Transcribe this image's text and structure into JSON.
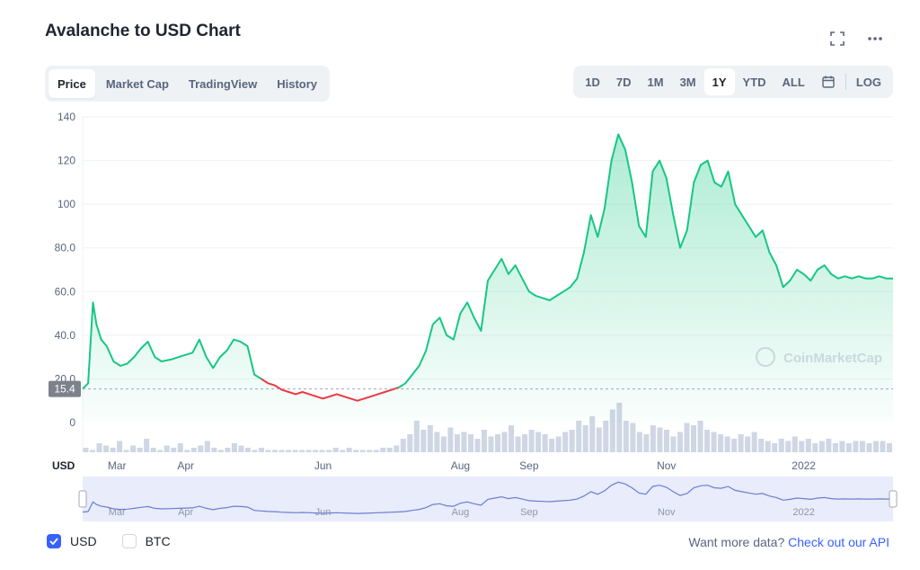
{
  "title": "Avalanche to USD Chart",
  "tabs": [
    {
      "label": "Price",
      "active": true
    },
    {
      "label": "Market Cap",
      "active": false
    },
    {
      "label": "TradingView",
      "active": false
    },
    {
      "label": "History",
      "active": false
    }
  ],
  "ranges": [
    {
      "label": "1D",
      "active": false
    },
    {
      "label": "7D",
      "active": false
    },
    {
      "label": "1M",
      "active": false
    },
    {
      "label": "3M",
      "active": false
    },
    {
      "label": "1Y",
      "active": true
    },
    {
      "label": "YTD",
      "active": false
    },
    {
      "label": "ALL",
      "active": false
    }
  ],
  "log_label": "LOG",
  "watermark": "CoinMarketCap",
  "footer": {
    "usd_label": "USD",
    "btc_label": "BTC",
    "api_text": "Want more data?",
    "api_link": "Check out our API"
  },
  "colors": {
    "up": "#16c784",
    "down": "#ea3943",
    "accent": "#3861fb",
    "navigator_fill": "#e8ecfb",
    "navigator_line": "#6a7fd0",
    "volume": "#cfd6e4"
  },
  "icons": [
    "fullscreen-icon",
    "more-icon",
    "calendar-icon",
    "check-icon"
  ],
  "chart_data": {
    "type": "area",
    "y_unit_label": "USD",
    "ylim": [
      0,
      140
    ],
    "y_ticks": [
      {
        "value": 140,
        "label": "140"
      },
      {
        "value": 120,
        "label": "120"
      },
      {
        "value": 100,
        "label": "100"
      },
      {
        "value": 80,
        "label": "80.0"
      },
      {
        "value": 60,
        "label": "60.0"
      },
      {
        "value": 40,
        "label": "40.0"
      },
      {
        "value": 20,
        "label": "20.0"
      },
      {
        "value": 0,
        "label": "0"
      }
    ],
    "reference_line": {
      "value": 15.4,
      "label": "15.4"
    },
    "x_ticks": [
      {
        "x": 0.5,
        "label": "Mar"
      },
      {
        "x": 1.5,
        "label": "Apr"
      },
      {
        "x": 3.5,
        "label": "Jun"
      },
      {
        "x": 5.5,
        "label": "Aug"
      },
      {
        "x": 6.5,
        "label": "Sep"
      },
      {
        "x": 8.5,
        "label": "Nov"
      },
      {
        "x": 10.5,
        "label": "2022"
      }
    ],
    "x_range": [
      0,
      11.8
    ],
    "grid": true,
    "series": [
      {
        "x": [
          0,
          0.08,
          0.15,
          0.2,
          0.27,
          0.35,
          0.45,
          0.55,
          0.65,
          0.75,
          0.85,
          0.95,
          1.05,
          1.15,
          1.3,
          1.4,
          1.5,
          1.6,
          1.7,
          1.8,
          1.9,
          2.0,
          2.1,
          2.2,
          2.3,
          2.4,
          2.5,
          2.6,
          2.7,
          2.8,
          2.9,
          3.0,
          3.1,
          3.2,
          3.3,
          3.4,
          3.5,
          3.6,
          3.7,
          3.8,
          3.9,
          4.0,
          4.1,
          4.2,
          4.3,
          4.4,
          4.5,
          4.6,
          4.7,
          4.8,
          4.9,
          5.0,
          5.1,
          5.2,
          5.3,
          5.4,
          5.5,
          5.6,
          5.7,
          5.8,
          5.9,
          6.0,
          6.1,
          6.2,
          6.3,
          6.4,
          6.5,
          6.6,
          6.7,
          6.8,
          6.9,
          7.0,
          7.1,
          7.2,
          7.3,
          7.4,
          7.5,
          7.6,
          7.7,
          7.8,
          7.9,
          8.0,
          8.1,
          8.2,
          8.3,
          8.4,
          8.5,
          8.6,
          8.7,
          8.8,
          8.9,
          9.0,
          9.1,
          9.2,
          9.3,
          9.4,
          9.5,
          9.6,
          9.7,
          9.8,
          9.9,
          10.0,
          10.1,
          10.2,
          10.3,
          10.4,
          10.5,
          10.6,
          10.7,
          10.8,
          10.9,
          11.0,
          11.1,
          11.2,
          11.3,
          11.4,
          11.5,
          11.6,
          11.7,
          11.8
        ],
        "values": [
          15.4,
          18,
          55,
          45,
          38,
          35,
          28,
          26,
          27,
          30,
          34,
          37,
          30,
          28,
          29,
          30,
          31,
          32,
          38,
          30,
          25,
          30,
          33,
          38,
          37,
          35,
          22,
          20,
          18,
          17,
          15,
          14,
          13,
          14,
          13,
          12,
          11,
          12,
          13,
          12,
          11,
          10,
          11,
          12,
          13,
          14,
          15,
          16,
          18,
          22,
          26,
          33,
          45,
          48,
          40,
          38,
          50,
          55,
          48,
          42,
          65,
          70,
          75,
          68,
          72,
          66,
          60,
          58,
          57,
          56,
          58,
          60,
          62,
          66,
          78,
          95,
          85,
          98,
          120,
          132,
          125,
          110,
          90,
          85,
          115,
          120,
          112,
          95,
          80,
          88,
          110,
          118,
          120,
          110,
          108,
          115,
          100,
          95,
          90,
          85,
          88,
          78,
          72,
          62,
          65,
          70,
          68,
          65,
          70,
          72,
          68,
          66,
          67,
          66,
          67,
          66,
          66,
          67,
          66,
          66
        ],
        "segments": [
          {
            "from_index": 0,
            "to_index": 27,
            "trend": "up"
          },
          {
            "from_index": 27,
            "to_index": 47,
            "trend": "down"
          },
          {
            "from_index": 47,
            "to_index": 119,
            "trend": "up"
          }
        ]
      }
    ],
    "volume": [
      2,
      1,
      4,
      3,
      2,
      5,
      1,
      3,
      2,
      6,
      2,
      1,
      3,
      2,
      4,
      1,
      2,
      3,
      5,
      2,
      1,
      2,
      4,
      3,
      2,
      1,
      2,
      1,
      1,
      1,
      1,
      1,
      1,
      1,
      1,
      1,
      1,
      2,
      1,
      2,
      1,
      1,
      1,
      1,
      2,
      2,
      3,
      6,
      8,
      14,
      10,
      12,
      9,
      7,
      11,
      8,
      9,
      8,
      6,
      10,
      7,
      8,
      9,
      12,
      7,
      8,
      10,
      9,
      8,
      6,
      7,
      9,
      10,
      14,
      12,
      16,
      11,
      14,
      19,
      22,
      14,
      13,
      9,
      8,
      12,
      11,
      10,
      7,
      9,
      13,
      12,
      14,
      10,
      9,
      8,
      7,
      6,
      8,
      7,
      9,
      6,
      5,
      4,
      6,
      5,
      7,
      5,
      6,
      4,
      5,
      6,
      4,
      5,
      4,
      5,
      5,
      4,
      5,
      5,
      4
    ]
  }
}
